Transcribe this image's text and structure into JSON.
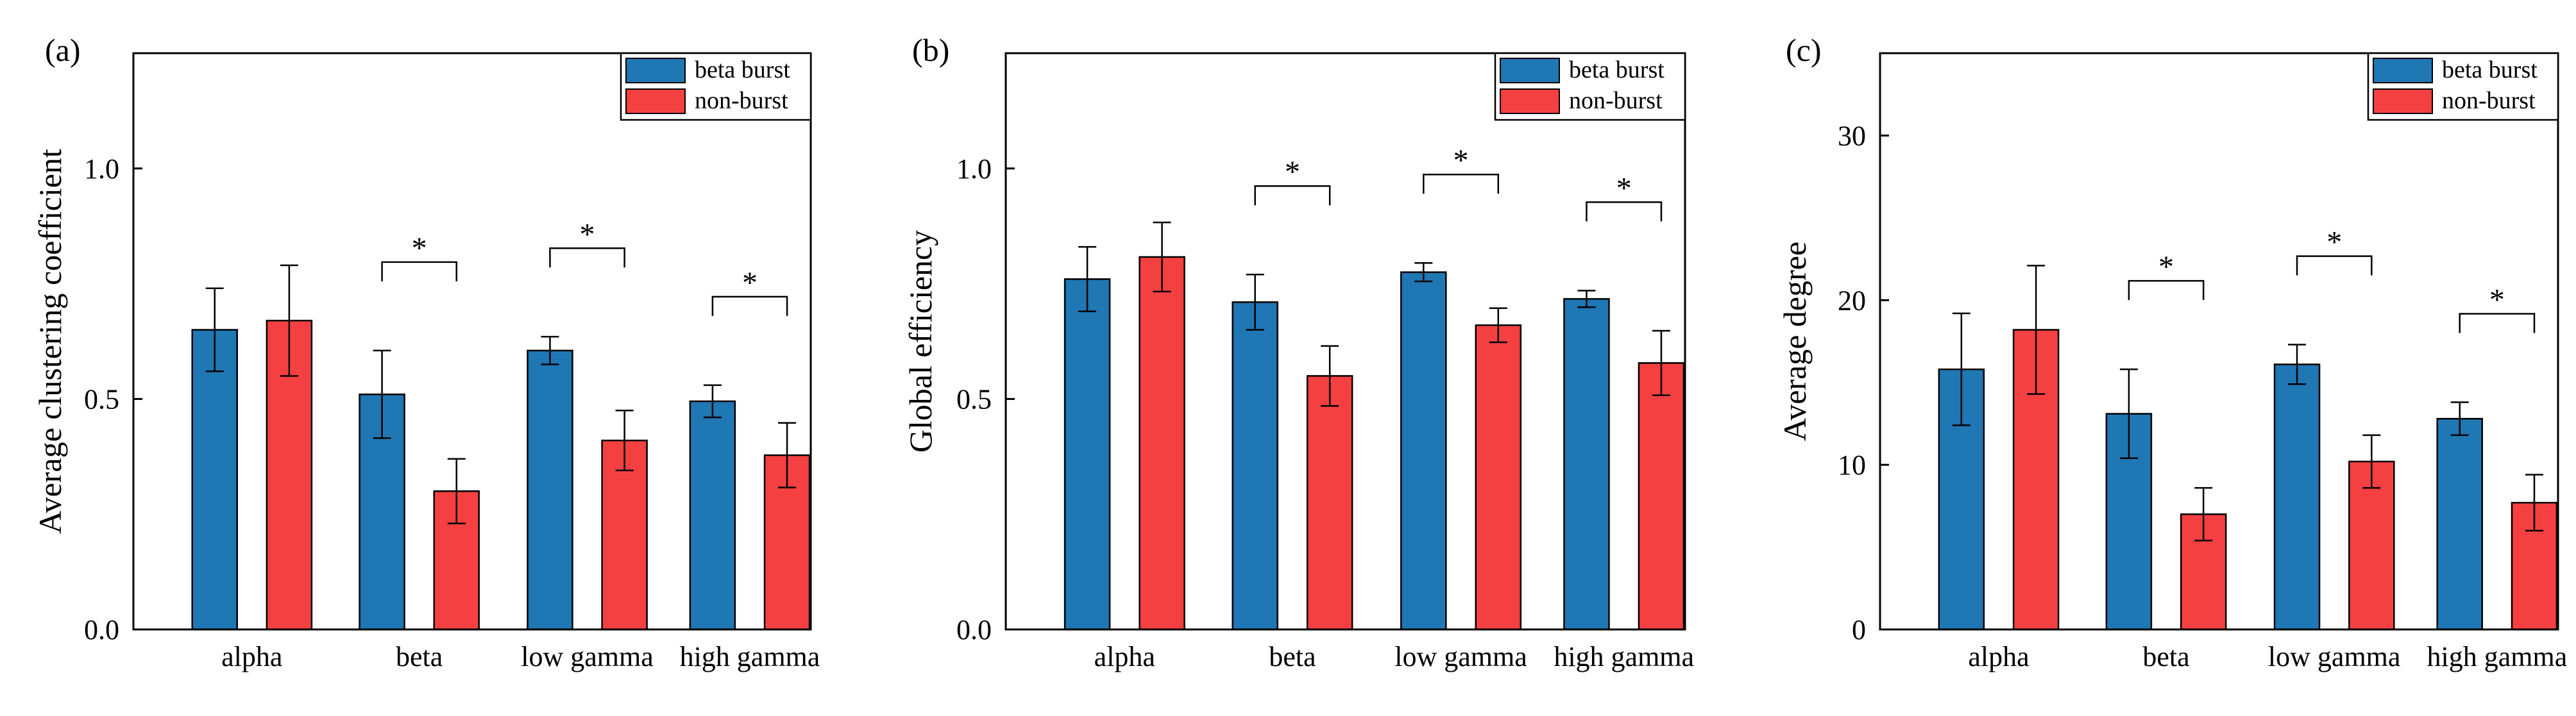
{
  "chart_data": [
    {
      "type": "bar",
      "panel_label": "(a)",
      "ylabel": "Average clustering coefficient",
      "xlabel": "",
      "ylim": [
        0,
        1.25
      ],
      "yticks": [
        0.0,
        0.5,
        1.0
      ],
      "ytick_labels": [
        "0.0",
        "0.5",
        "1.0"
      ],
      "categories": [
        "alpha",
        "beta",
        "low gamma",
        "high gamma"
      ],
      "series": [
        {
          "name": "beta burst",
          "color": "#1f77b4",
          "values": [
            0.65,
            0.51,
            0.605,
            0.495
          ],
          "errors": [
            0.09,
            0.095,
            0.03,
            0.035
          ]
        },
        {
          "name": "non-burst",
          "color": "#f44040",
          "values": [
            0.67,
            0.3,
            0.41,
            0.378
          ],
          "errors": [
            0.12,
            0.07,
            0.065,
            0.07
          ]
        }
      ],
      "significance": [
        "",
        "*",
        "*",
        "*"
      ],
      "legend": "top-right",
      "grid": false
    },
    {
      "type": "bar",
      "panel_label": "(b)",
      "ylabel": "Global efficiency",
      "xlabel": "",
      "ylim": [
        0,
        1.25
      ],
      "yticks": [
        0.0,
        0.5,
        1.0
      ],
      "ytick_labels": [
        "0.0",
        "0.5",
        "1.0"
      ],
      "categories": [
        "alpha",
        "beta",
        "low gamma",
        "high gamma"
      ],
      "series": [
        {
          "name": "beta burst",
          "color": "#1f77b4",
          "values": [
            0.76,
            0.71,
            0.775,
            0.717
          ],
          "errors": [
            0.07,
            0.06,
            0.02,
            0.018
          ]
        },
        {
          "name": "non-burst",
          "color": "#f44040",
          "values": [
            0.808,
            0.55,
            0.66,
            0.578
          ],
          "errors": [
            0.075,
            0.065,
            0.037,
            0.07
          ]
        }
      ],
      "significance": [
        "",
        "*",
        "*",
        "*"
      ],
      "legend": "top-right",
      "grid": false
    },
    {
      "type": "bar",
      "panel_label": "(c)",
      "ylabel": "Average degree",
      "xlabel": "",
      "ylim": [
        0,
        35
      ],
      "yticks": [
        0,
        10,
        20,
        30
      ],
      "ytick_labels": [
        "0",
        "10",
        "20",
        "30"
      ],
      "categories": [
        "alpha",
        "beta",
        "low gamma",
        "high gamma"
      ],
      "series": [
        {
          "name": "beta burst",
          "color": "#1f77b4",
          "values": [
            15.8,
            13.1,
            16.1,
            12.8
          ],
          "errors": [
            3.4,
            2.7,
            1.2,
            1.0
          ]
        },
        {
          "name": "non-burst",
          "color": "#f44040",
          "values": [
            18.2,
            7.0,
            10.2,
            7.7
          ],
          "errors": [
            3.9,
            1.6,
            1.6,
            1.7
          ]
        }
      ],
      "significance": [
        "",
        "*",
        "*",
        "*"
      ],
      "legend": "top-right",
      "grid": false
    }
  ]
}
